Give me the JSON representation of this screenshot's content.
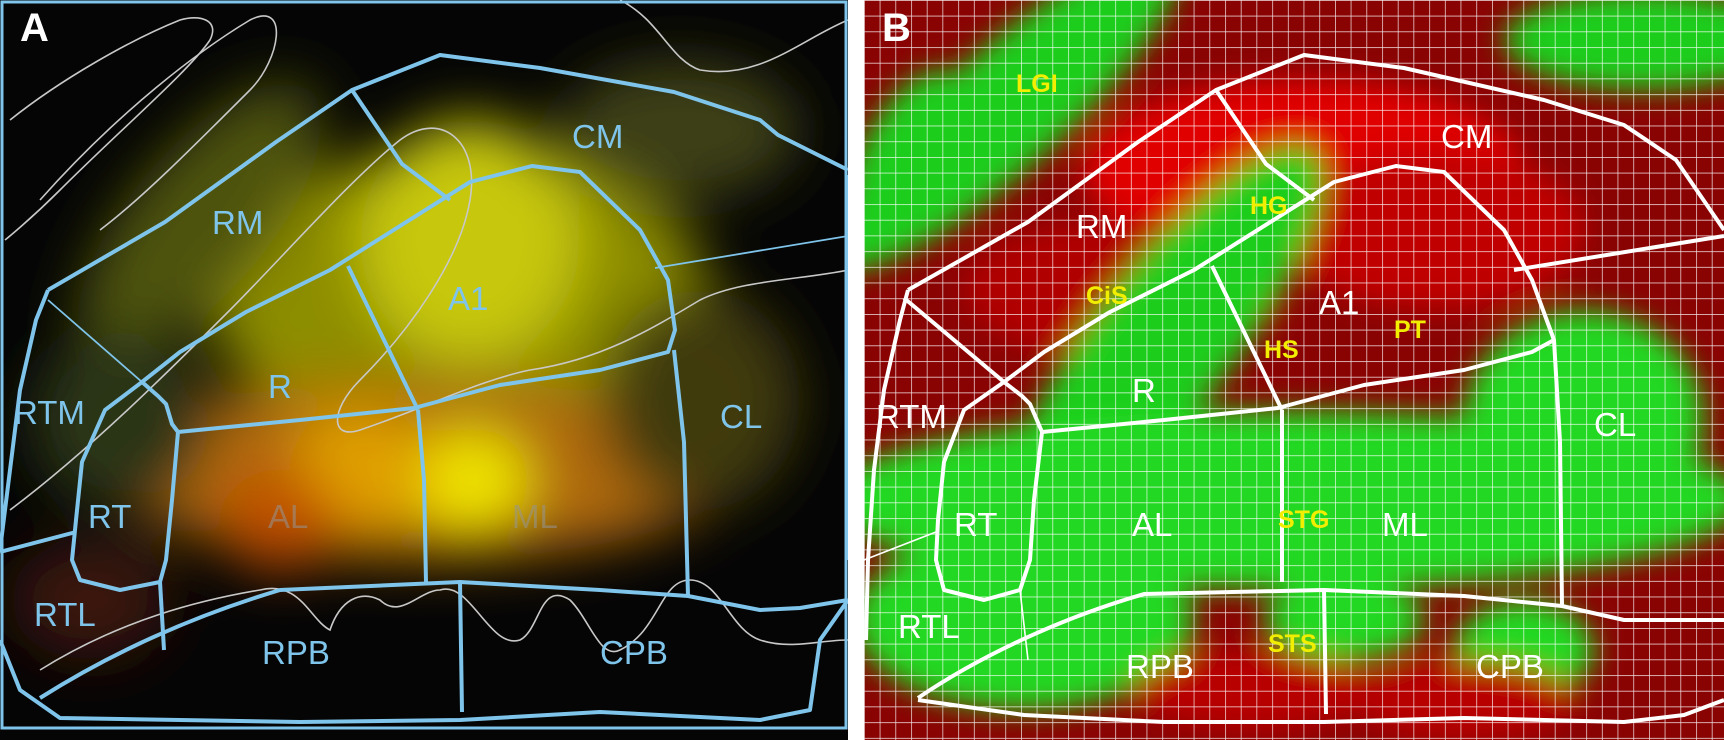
{
  "panels": [
    {
      "letter": "A",
      "areas": [
        "CM",
        "RM",
        "A1",
        "R",
        "RTM",
        "CL",
        "RT",
        "AL",
        "ML",
        "RTL",
        "RPB",
        "CPB"
      ]
    },
    {
      "letter": "B",
      "areas": [
        "CM",
        "RM",
        "A1",
        "R",
        "RTM",
        "CL",
        "RT",
        "AL",
        "ML",
        "RTL",
        "RPB",
        "CPB"
      ],
      "landmarks": [
        "LGI",
        "HG",
        "CiS",
        "HS",
        "PT",
        "STG",
        "STS"
      ]
    }
  ],
  "colors": {
    "panel_a_outline": "#7fc4ea",
    "panel_b_outline": "#ffffff",
    "landmark_text": "#f2ee00",
    "panel_b_red": "#d40000",
    "panel_b_green": "#2fd42f"
  }
}
